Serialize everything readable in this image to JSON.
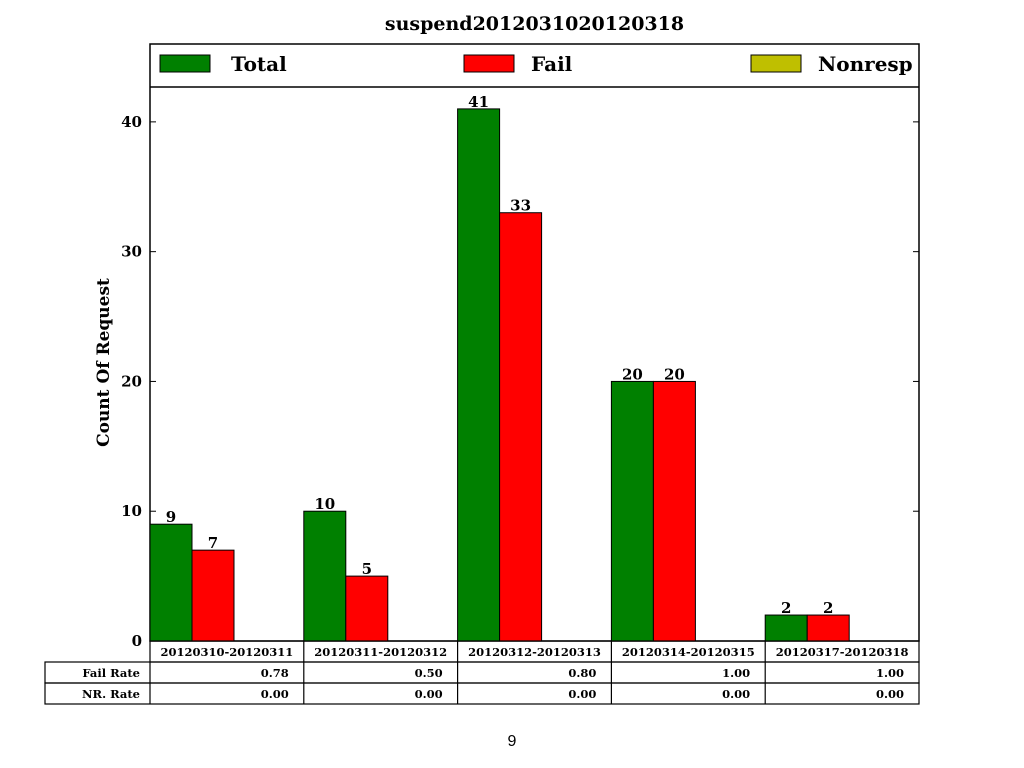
{
  "chart_data": {
    "type": "bar",
    "title": "suspend2012031020120318",
    "ylabel": "Count Of Request",
    "xlabel": "",
    "ylim": [
      0,
      46
    ],
    "yticks": [
      0,
      10,
      20,
      30,
      40
    ],
    "legend_position": "top",
    "categories": [
      "20120310-20120311",
      "20120311-20120312",
      "20120312-20120313",
      "20120314-20120315",
      "20120317-20120318"
    ],
    "series": [
      {
        "name": "Total",
        "color": "#008000",
        "values": [
          9,
          10,
          41,
          20,
          2
        ],
        "labels": [
          "9",
          "10",
          "41",
          "20",
          "2"
        ]
      },
      {
        "name": "Fail",
        "color": "#ff0000",
        "values": [
          7,
          5,
          33,
          20,
          2
        ],
        "labels": [
          "7",
          "5",
          "33",
          "20",
          "2"
        ]
      },
      {
        "name": "Nonresp",
        "color": "#bfbf00",
        "values": [
          0,
          0,
          0,
          0,
          0
        ],
        "labels": []
      }
    ],
    "table": {
      "rows": [
        {
          "label": "Fail Rate",
          "values": [
            "0.78",
            "0.50",
            "0.80",
            "1.00",
            "1.00"
          ]
        },
        {
          "label": "NR. Rate",
          "values": [
            "0.00",
            "0.00",
            "0.00",
            "0.00",
            "0.00"
          ]
        }
      ]
    }
  },
  "page_number": "9"
}
